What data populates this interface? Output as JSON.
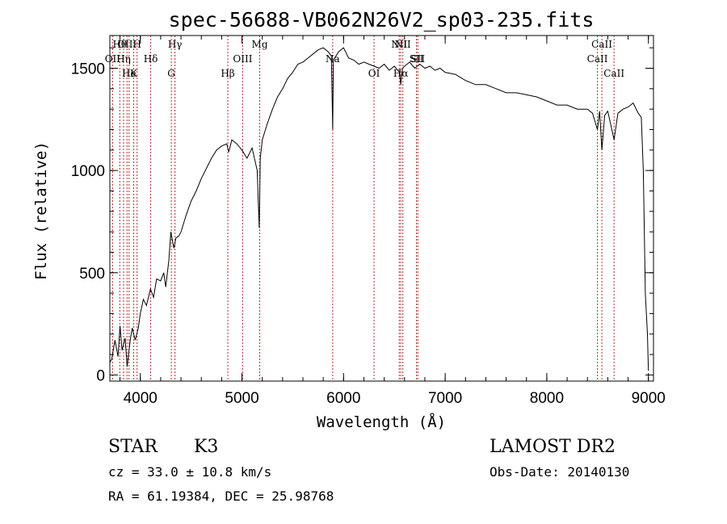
{
  "chart_data": {
    "type": "line",
    "title": "spec-56688-VB062N26V2_sp03-235.fits",
    "xlabel": "Wavelength (Å)",
    "ylabel": "Flux (relative)",
    "xlim": [
      3700,
      9050
    ],
    "ylim": [
      -30,
      1660
    ],
    "x_ticks": [
      4000,
      5000,
      6000,
      7000,
      8000,
      9000
    ],
    "y_ticks": [
      0,
      500,
      1000,
      1500
    ],
    "x_tick_labels": [
      "4000",
      "5000",
      "6000",
      "7000",
      "8000",
      "9000"
    ],
    "y_tick_labels": [
      "0",
      "500",
      "1000",
      "1500"
    ],
    "grid": false,
    "series": [
      {
        "x": [
          3700,
          3720,
          3750,
          3780,
          3800,
          3820,
          3850,
          3870,
          3900,
          3920,
          3950,
          3980,
          4000,
          4030,
          4060,
          4100,
          4130,
          4160,
          4200,
          4230,
          4250,
          4280,
          4300,
          4330,
          4350,
          4380,
          4400,
          4450,
          4500,
          4550,
          4600,
          4650,
          4700,
          4750,
          4800,
          4850,
          4870,
          4900,
          4950,
          5000,
          5050,
          5100,
          5150,
          5170,
          5180,
          5200,
          5250,
          5300,
          5350,
          5400,
          5450,
          5500,
          5550,
          5600,
          5650,
          5700,
          5750,
          5800,
          5850,
          5880,
          5893,
          5900,
          5950,
          6000,
          6050,
          6100,
          6150,
          6200,
          6250,
          6300,
          6350,
          6400,
          6450,
          6500,
          6550,
          6563,
          6580,
          6600,
          6650,
          6700,
          6750,
          6800,
          6850,
          6900,
          6950,
          7000,
          7100,
          7200,
          7300,
          7400,
          7500,
          7600,
          7700,
          7800,
          7900,
          8000,
          8100,
          8200,
          8300,
          8400,
          8450,
          8498,
          8520,
          8542,
          8570,
          8600,
          8662,
          8700,
          8750,
          8800,
          8850,
          8900,
          8930,
          8950,
          8970,
          8990,
          9000
        ],
        "y": [
          60,
          80,
          170,
          90,
          240,
          120,
          180,
          40,
          170,
          230,
          170,
          230,
          300,
          370,
          340,
          420,
          380,
          470,
          460,
          500,
          430,
          560,
          700,
          620,
          670,
          680,
          700,
          780,
          850,
          900,
          960,
          1010,
          1060,
          1100,
          1120,
          1130,
          1090,
          1150,
          1130,
          1100,
          1060,
          1110,
          1000,
          720,
          1060,
          1150,
          1230,
          1300,
          1360,
          1400,
          1450,
          1480,
          1520,
          1530,
          1550,
          1570,
          1590,
          1600,
          1580,
          1560,
          1200,
          1540,
          1580,
          1600,
          1550,
          1540,
          1520,
          1530,
          1520,
          1510,
          1500,
          1520,
          1490,
          1510,
          1480,
          1420,
          1500,
          1510,
          1530,
          1500,
          1520,
          1500,
          1510,
          1490,
          1500,
          1480,
          1470,
          1440,
          1420,
          1420,
          1400,
          1380,
          1380,
          1370,
          1360,
          1340,
          1320,
          1320,
          1300,
          1300,
          1280,
          1200,
          1290,
          1100,
          1270,
          1290,
          1150,
          1280,
          1300,
          1310,
          1330,
          1280,
          1260,
          1000,
          400,
          200,
          20
        ]
      }
    ],
    "emission_lines": [
      {
        "name": "Hθ",
        "wavelength": 3798
      },
      {
        "name": "OII",
        "wavelength": 3727
      },
      {
        "name": "He",
        "wavelength": 3889
      },
      {
        "name": "OIII",
        "wavelength": 3869
      },
      {
        "name": "Hη",
        "wavelength": 3835
      },
      {
        "name": "K",
        "wavelength": 3934
      },
      {
        "name": "H",
        "wavelength": 3968
      },
      {
        "name": "Hδ",
        "wavelength": 4102
      },
      {
        "name": "G",
        "wavelength": 4305
      },
      {
        "name": "Hγ",
        "wavelength": 4341
      },
      {
        "name": "OIII",
        "wavelength": 5007
      },
      {
        "name": "Hβ",
        "wavelength": 4861
      },
      {
        "name": "Mg",
        "wavelength": 5175
      },
      {
        "name": "Na",
        "wavelength": 5893
      },
      {
        "name": "OI",
        "wavelength": 6300
      },
      {
        "name": "NII",
        "wavelength": 6548
      },
      {
        "name": "SII",
        "wavelength": 6717
      },
      {
        "name": "Hα",
        "wavelength": 6563
      },
      {
        "name": "NII",
        "wavelength": 6583
      },
      {
        "name": "SII",
        "wavelength": 6731
      },
      {
        "name": "CaII",
        "wavelength": 8662
      },
      {
        "name": "CaII",
        "wavelength": 8542
      },
      {
        "name": "CaII",
        "wavelength": 8498
      }
    ]
  },
  "info": {
    "object_class": "STAR",
    "subclass": "K3",
    "cz": "cz = 33.0 ± 10.8 km/s",
    "coords": "RA =  61.19384, DEC =  25.98768",
    "survey": "LAMOST DR2",
    "obs_date": "Obs-Date: 20140130"
  }
}
